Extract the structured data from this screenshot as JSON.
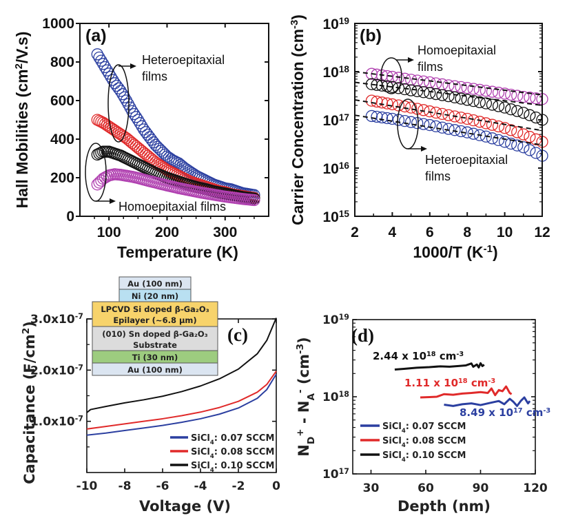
{
  "chart_data": [
    {
      "panel": "a",
      "type": "scatter",
      "panel_label": "(a)",
      "xlabel": "Temperature (K)",
      "ylabel": "Hall Mobilities (cm²/V.s)",
      "xlim": [
        50,
        375
      ],
      "ylim": [
        0,
        1000
      ],
      "xticks": [
        100,
        200,
        300
      ],
      "yticks": [
        0,
        200,
        400,
        600,
        800,
        1000
      ],
      "marker": "open-circle",
      "series": [
        {
          "name": "Heteroepitaxial film 1",
          "color": "#2b3fa0",
          "x": [
            80,
            90,
            100,
            110,
            120,
            130,
            140,
            150,
            160,
            170,
            180,
            190,
            200,
            210,
            220,
            230,
            240,
            250,
            260,
            270,
            280,
            290,
            300,
            310,
            320,
            330,
            340,
            350
          ],
          "y": [
            840,
            790,
            740,
            690,
            650,
            600,
            545,
            500,
            450,
            410,
            370,
            340,
            310,
            290,
            275,
            250,
            230,
            210,
            195,
            180,
            165,
            155,
            145,
            140,
            130,
            120,
            115,
            110
          ]
        },
        {
          "name": "Heteroepitaxial film 2",
          "color": "#e02a2a",
          "x": [
            80,
            90,
            100,
            110,
            120,
            130,
            140,
            150,
            160,
            170,
            180,
            190,
            200,
            210,
            220,
            230,
            240,
            250,
            260,
            270,
            280,
            290,
            300,
            310,
            320,
            330,
            340,
            350
          ],
          "y": [
            500,
            485,
            465,
            445,
            425,
            405,
            380,
            355,
            330,
            305,
            280,
            260,
            240,
            225,
            210,
            195,
            180,
            170,
            160,
            150,
            140,
            130,
            125,
            115,
            110,
            105,
            100,
            95
          ]
        },
        {
          "name": "Homoepitaxial film 1",
          "color": "#111111",
          "x": [
            80,
            90,
            100,
            110,
            120,
            130,
            140,
            150,
            160,
            170,
            180,
            190,
            200,
            210,
            220,
            230,
            240,
            250,
            260,
            270,
            280,
            290,
            300,
            310,
            320,
            330,
            340,
            350
          ],
          "y": [
            320,
            335,
            335,
            325,
            315,
            300,
            285,
            270,
            255,
            240,
            225,
            212,
            200,
            190,
            180,
            170,
            160,
            152,
            145,
            138,
            130,
            124,
            118,
            112,
            106,
            100,
            96,
            92
          ]
        },
        {
          "name": "Homoepitaxial film 2",
          "color": "#b040b0",
          "x": [
            80,
            90,
            100,
            110,
            120,
            130,
            140,
            150,
            160,
            170,
            180,
            190,
            200,
            210,
            220,
            230,
            240,
            250,
            260,
            270,
            280,
            290,
            300,
            310,
            320,
            330,
            340,
            350
          ],
          "y": [
            165,
            195,
            212,
            218,
            215,
            210,
            205,
            198,
            190,
            182,
            175,
            167,
            160,
            153,
            146,
            140,
            134,
            128,
            122,
            117,
            112,
            107,
            102,
            98,
            94,
            90,
            87,
            84
          ]
        }
      ],
      "annotations": [
        {
          "text_lines": [
            "Heteroepitaxial",
            "films"
          ]
        },
        {
          "text_lines": [
            "Homoepitaxial films"
          ]
        }
      ]
    },
    {
      "panel": "b",
      "type": "scatter",
      "panel_label": "(b)",
      "xlabel": "1000/T (K⁻¹)",
      "ylabel": "Carrier Concentration (cm⁻³)",
      "xlim": [
        2,
        12
      ],
      "ylim_log10": [
        15,
        19
      ],
      "xticks": [
        2,
        4,
        6,
        8,
        10,
        12
      ],
      "yticks_exp": [
        15,
        16,
        17,
        18,
        19
      ],
      "ytick_base": "10",
      "marker": "open-circle",
      "series": [
        {
          "name": "Homoepitaxial film 2",
          "color": "#b040b0",
          "x": [
            2.9,
            4,
            5,
            6,
            7,
            8,
            9,
            10,
            11,
            12
          ],
          "y": [
            9e+17,
            7.8e+17,
            6.8e+17,
            6e+17,
            5.2e+17,
            4.6e+17,
            4e+17,
            3.5e+17,
            3e+17,
            2.7e+17
          ]
        },
        {
          "name": "Homoepitaxial film 1",
          "color": "#111111",
          "x": [
            2.9,
            4,
            5,
            6,
            7,
            8,
            9,
            10,
            11,
            12
          ],
          "y": [
            5.5e+17,
            4.8e+17,
            4.1e+17,
            3.6e+17,
            3.1e+17,
            2.6e+17,
            2.2e+17,
            1.8e+17,
            1.4e+17,
            1e+17
          ]
        },
        {
          "name": "Heteroepitaxial film 2",
          "color": "#e02a2a",
          "x": [
            2.9,
            4,
            5,
            6,
            7,
            8,
            9,
            10,
            11,
            12
          ],
          "y": [
            2.5e+17,
            2.1e+17,
            1.8e+17,
            1.5e+17,
            1.25e+17,
            1.05e+17,
            8.5e+16,
            6.8e+16,
            5e+16,
            3.5e+16
          ]
        },
        {
          "name": "Heteroepitaxial film 1",
          "color": "#2b3fa0",
          "x": [
            2.9,
            4,
            5,
            6,
            7,
            8,
            9,
            10,
            11,
            12
          ],
          "y": [
            1.2e+17,
            1.05e+17,
            9e+16,
            7.8e+16,
            6.5e+16,
            5.5e+16,
            4.5e+16,
            3.5e+16,
            2.7e+16,
            1.8e+16
          ]
        }
      ],
      "fit_lines": [
        {
          "style": "dashed",
          "color": "#111111",
          "y_start": 1e+18,
          "y_end": 3.3e+17
        },
        {
          "style": "dashed",
          "color": "#111111",
          "y_start": 6e+17,
          "y_end": 2e+17
        },
        {
          "style": "dashed",
          "color": "#111111",
          "y_start": 2.6e+17,
          "y_end": 6e+16
        },
        {
          "style": "dashed",
          "color": "#111111",
          "y_start": 1.25e+17,
          "y_end": 3e+16
        }
      ],
      "annotations": [
        {
          "text_lines": [
            "Homoepitaxial",
            "films"
          ]
        },
        {
          "text_lines": [
            "Heteroepitaxial",
            "films"
          ]
        }
      ]
    },
    {
      "panel": "c",
      "type": "line",
      "panel_label": "(c)",
      "xlabel": "Voltage (V)",
      "ylabel": "Capacitance (F/cm²)",
      "xlim": [
        -10,
        0
      ],
      "ylim": [
        0,
        3e-07
      ],
      "xticks": [
        -10,
        -8,
        -6,
        -4,
        -2,
        0
      ],
      "xtick_labels": [
        "-10",
        "-8",
        "-6",
        "-4",
        "-2",
        "0"
      ],
      "yticks": [
        1e-07,
        2e-07,
        3e-07
      ],
      "ytick_labels": [
        {
          "mant": "1.0x10",
          "exp": "-7"
        },
        {
          "mant": "2.0x10",
          "exp": "-7"
        },
        {
          "mant": "3.0x10",
          "exp": "-7"
        }
      ],
      "series": [
        {
          "name": "SiCl4 : 0.07 SCCM",
          "legend_sub": "4",
          "legend_pre": "SiCl",
          "legend_post": ": 0.07 SCCM",
          "color": "#2b3fa0",
          "x": [
            -10,
            -9,
            -8,
            -7,
            -6,
            -5,
            -4,
            -3,
            -2,
            -1,
            -0.5,
            0
          ],
          "y": [
            7.3e-08,
            7.7e-08,
            8.2e-08,
            8.7e-08,
            9.2e-08,
            9.8e-08,
            1.05e-07,
            1.14e-07,
            1.26e-07,
            1.45e-07,
            1.62e-07,
            1.92e-07
          ]
        },
        {
          "name": "SiCl4 : 0.08 SCCM",
          "legend_sub": "4",
          "legend_pre": "SiCl",
          "legend_post": ": 0.08 SCCM",
          "color": "#e02a2a",
          "x": [
            -10,
            -9,
            -8,
            -7,
            -6,
            -5,
            -4,
            -3,
            -2,
            -1,
            -0.5,
            0
          ],
          "y": [
            8.5e-08,
            9e-08,
            9.5e-08,
            1e-07,
            1.05e-07,
            1.11e-07,
            1.18e-07,
            1.27e-07,
            1.39e-07,
            1.57e-07,
            1.72e-07,
            1.98e-07
          ]
        },
        {
          "name": "SiCl4 : 0.10 SCCM",
          "legend_sub": "4",
          "legend_pre": "SiCl",
          "legend_post": ": 0.10 SCCM",
          "color": "#111111",
          "x": [
            -10,
            -9.8,
            -9,
            -8,
            -7,
            -6,
            -5,
            -4,
            -3,
            -2,
            -1,
            -0.5,
            0
          ],
          "y": [
            1.17e-07,
            1.23e-07,
            1.29e-07,
            1.36e-07,
            1.42e-07,
            1.49e-07,
            1.58e-07,
            1.69e-07,
            1.83e-07,
            2.02e-07,
            2.32e-07,
            2.58e-07,
            3.02e-07
          ]
        }
      ],
      "legend_position": "bottom-right",
      "inset_stack": {
        "layers": [
          {
            "label": "Au (100 nm)",
            "color": "#dbe5f1"
          },
          {
            "label": "Ni (20 nm)",
            "color": "#b9e0f1"
          },
          {
            "label": "LPCVD Si doped β-Ga₂O₃",
            "label2": "Epilayer (~6.8 µm)",
            "color": "#f7d36b"
          },
          {
            "label": "(010) Sn doped β-Ga₂O₃",
            "label2": "Substrate",
            "color": "#dcdcdc"
          },
          {
            "label": "Ti (30 nm)",
            "color": "#9dcc7f"
          },
          {
            "label": "Au (100 nm)",
            "color": "#dbe5f1"
          }
        ]
      }
    },
    {
      "panel": "d",
      "type": "line",
      "panel_label": "(d)",
      "xlabel": "Depth (nm)",
      "ylabel": "N_D⁺ - N_A⁻ (cm⁻³)",
      "xlim": [
        20,
        120
      ],
      "ylim_log10": [
        17,
        19
      ],
      "xticks": [
        30,
        60,
        90,
        120
      ],
      "yticks_exp": [
        17,
        18,
        19
      ],
      "ytick_base": "10",
      "series": [
        {
          "name": "SiCl4 : 0.07 SCCM",
          "legend_pre": "SiCl",
          "legend_sub": "4",
          "legend_post": ": 0.07 SCCM",
          "color": "#2b3fa0",
          "x": [
            70,
            75,
            80,
            85,
            90,
            95,
            100,
            103,
            106,
            108,
            110,
            112,
            114,
            116,
            117
          ],
          "y": [
            7.9e+17,
            7.6e+17,
            8e+17,
            8.2e+17,
            7.8e+17,
            8.3e+17,
            8.8e+17,
            8e+17,
            9.4e+17,
            8.6e+17,
            7.6e+17,
            8.8e+17,
            9.8e+17,
            8.2e+17,
            8.8e+17
          ],
          "label": {
            "mant": "8.49 x 10",
            "exp": "17",
            "unit": " cm",
            "unit_exp": "-3"
          }
        },
        {
          "name": "SiCl4 : 0.08 SCCM",
          "legend_pre": "SiCl",
          "legend_post": ": 0.08 SCCM",
          "legend_sub": "4",
          "color": "#e02a2a",
          "x": [
            57,
            62,
            66,
            70,
            75,
            80,
            85,
            90,
            94,
            96,
            98,
            100,
            102,
            104,
            106,
            107
          ],
          "y": [
            9.8e+17,
            9.9e+17,
            1e+18,
            1.08e+18,
            1.06e+18,
            1.1e+18,
            1.12e+18,
            1.15e+18,
            1.12e+18,
            1.28e+18,
            1.05e+18,
            1.22e+18,
            1.18e+18,
            1.36e+18,
            1.12e+18,
            1.08e+18
          ],
          "label": {
            "mant": "1.11 x 10",
            "exp": "18",
            "unit": " cm",
            "unit_exp": "-3"
          }
        },
        {
          "name": "SiCl4 : 0.10 SCCM",
          "legend_pre": "SiCl",
          "legend_post": ": 0.10 SCCM",
          "legend_sub": "4",
          "color": "#111111",
          "x": [
            43,
            48,
            55,
            62,
            68,
            73,
            78,
            82,
            85,
            86,
            88,
            89,
            90,
            91,
            92
          ],
          "y": [
            2.25e+18,
            2.3e+18,
            2.38e+18,
            2.42e+18,
            2.48e+18,
            2.45e+18,
            2.5e+18,
            2.55e+18,
            2.7e+18,
            2.45e+18,
            2.62e+18,
            2.4e+18,
            2.72e+18,
            2.5e+18,
            2.6e+18
          ],
          "label": {
            "mant": "2.44 x 10",
            "exp": "18",
            "unit": " cm",
            "unit_exp": "-3"
          }
        }
      ],
      "legend_position": "bottom-left"
    }
  ]
}
